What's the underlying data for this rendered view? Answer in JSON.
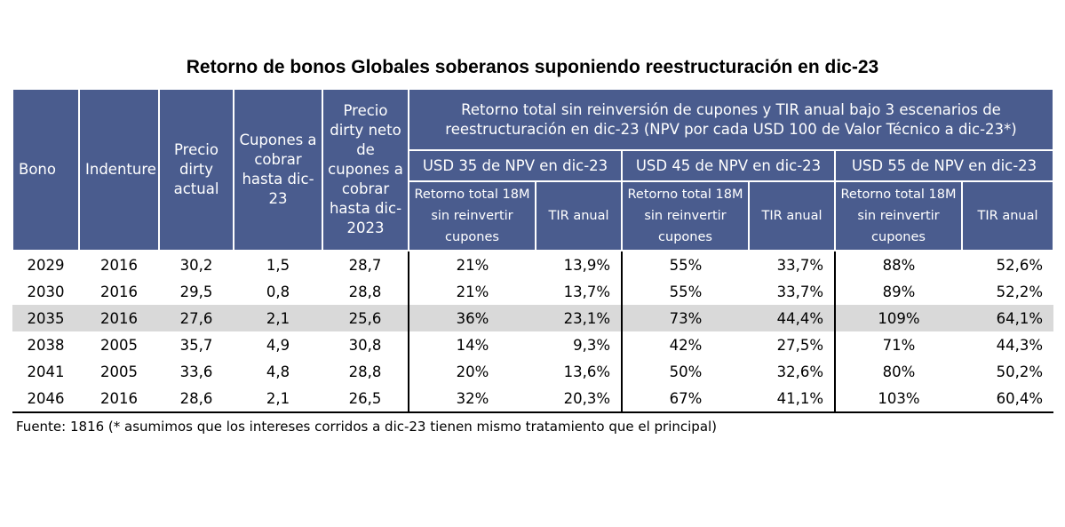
{
  "title": "Retorno de bonos Globales soberanos suponiendo reestructuración en dic-23",
  "headers": {
    "bono": "Bono",
    "indenture": "Indenture",
    "precio_dirty": "Precio dirty actual",
    "cupones": "Cupones a cobrar hasta dic-23",
    "precio_neto": "Precio dirty neto de cupones a cobrar hasta dic-2023",
    "group": "Retorno total sin reinversión de cupones y TIR anual bajo 3 escenarios de reestructuración en dic-23 (NPV por cada USD 100 de Valor Técnico a dic-23*)",
    "scenarios": [
      "USD 35 de NPV en dic-23",
      "USD 45 de NPV en dic-23",
      "USD 55 de NPV en dic-23"
    ],
    "retorno": "Retorno total 18M sin reinvertir cupones",
    "tir": "TIR anual"
  },
  "rows": [
    {
      "bono": "2029",
      "indenture": "2016",
      "precio": "30,2",
      "cupones": "1,5",
      "neto": "28,7",
      "r35": "21%",
      "t35": "13,9%",
      "r45": "55%",
      "t45": "33,7%",
      "r55": "88%",
      "t55": "52,6%"
    },
    {
      "bono": "2030",
      "indenture": "2016",
      "precio": "29,5",
      "cupones": "0,8",
      "neto": "28,8",
      "r35": "21%",
      "t35": "13,7%",
      "r45": "55%",
      "t45": "33,7%",
      "r55": "89%",
      "t55": "52,2%"
    },
    {
      "bono": "2035",
      "indenture": "2016",
      "precio": "27,6",
      "cupones": "2,1",
      "neto": "25,6",
      "r35": "36%",
      "t35": "23,1%",
      "r45": "73%",
      "t45": "44,4%",
      "r55": "109%",
      "t55": "64,1%"
    },
    {
      "bono": "2038",
      "indenture": "2005",
      "precio": "35,7",
      "cupones": "4,9",
      "neto": "30,8",
      "r35": "14%",
      "t35": "9,3%",
      "r45": "42%",
      "t45": "27,5%",
      "r55": "71%",
      "t55": "44,3%"
    },
    {
      "bono": "2041",
      "indenture": "2005",
      "precio": "33,6",
      "cupones": "4,8",
      "neto": "28,8",
      "r35": "20%",
      "t35": "13,6%",
      "r45": "50%",
      "t45": "32,6%",
      "r55": "80%",
      "t55": "50,2%"
    },
    {
      "bono": "2046",
      "indenture": "2016",
      "precio": "28,6",
      "cupones": "2,1",
      "neto": "26,5",
      "r35": "32%",
      "t35": "20,3%",
      "r45": "67%",
      "t45": "41,1%",
      "r55": "103%",
      "t55": "60,4%"
    }
  ],
  "source": "Fuente: 1816 (* asumimos que los intereses corridos a dic-23 tienen mismo tratamiento que el principal)"
}
